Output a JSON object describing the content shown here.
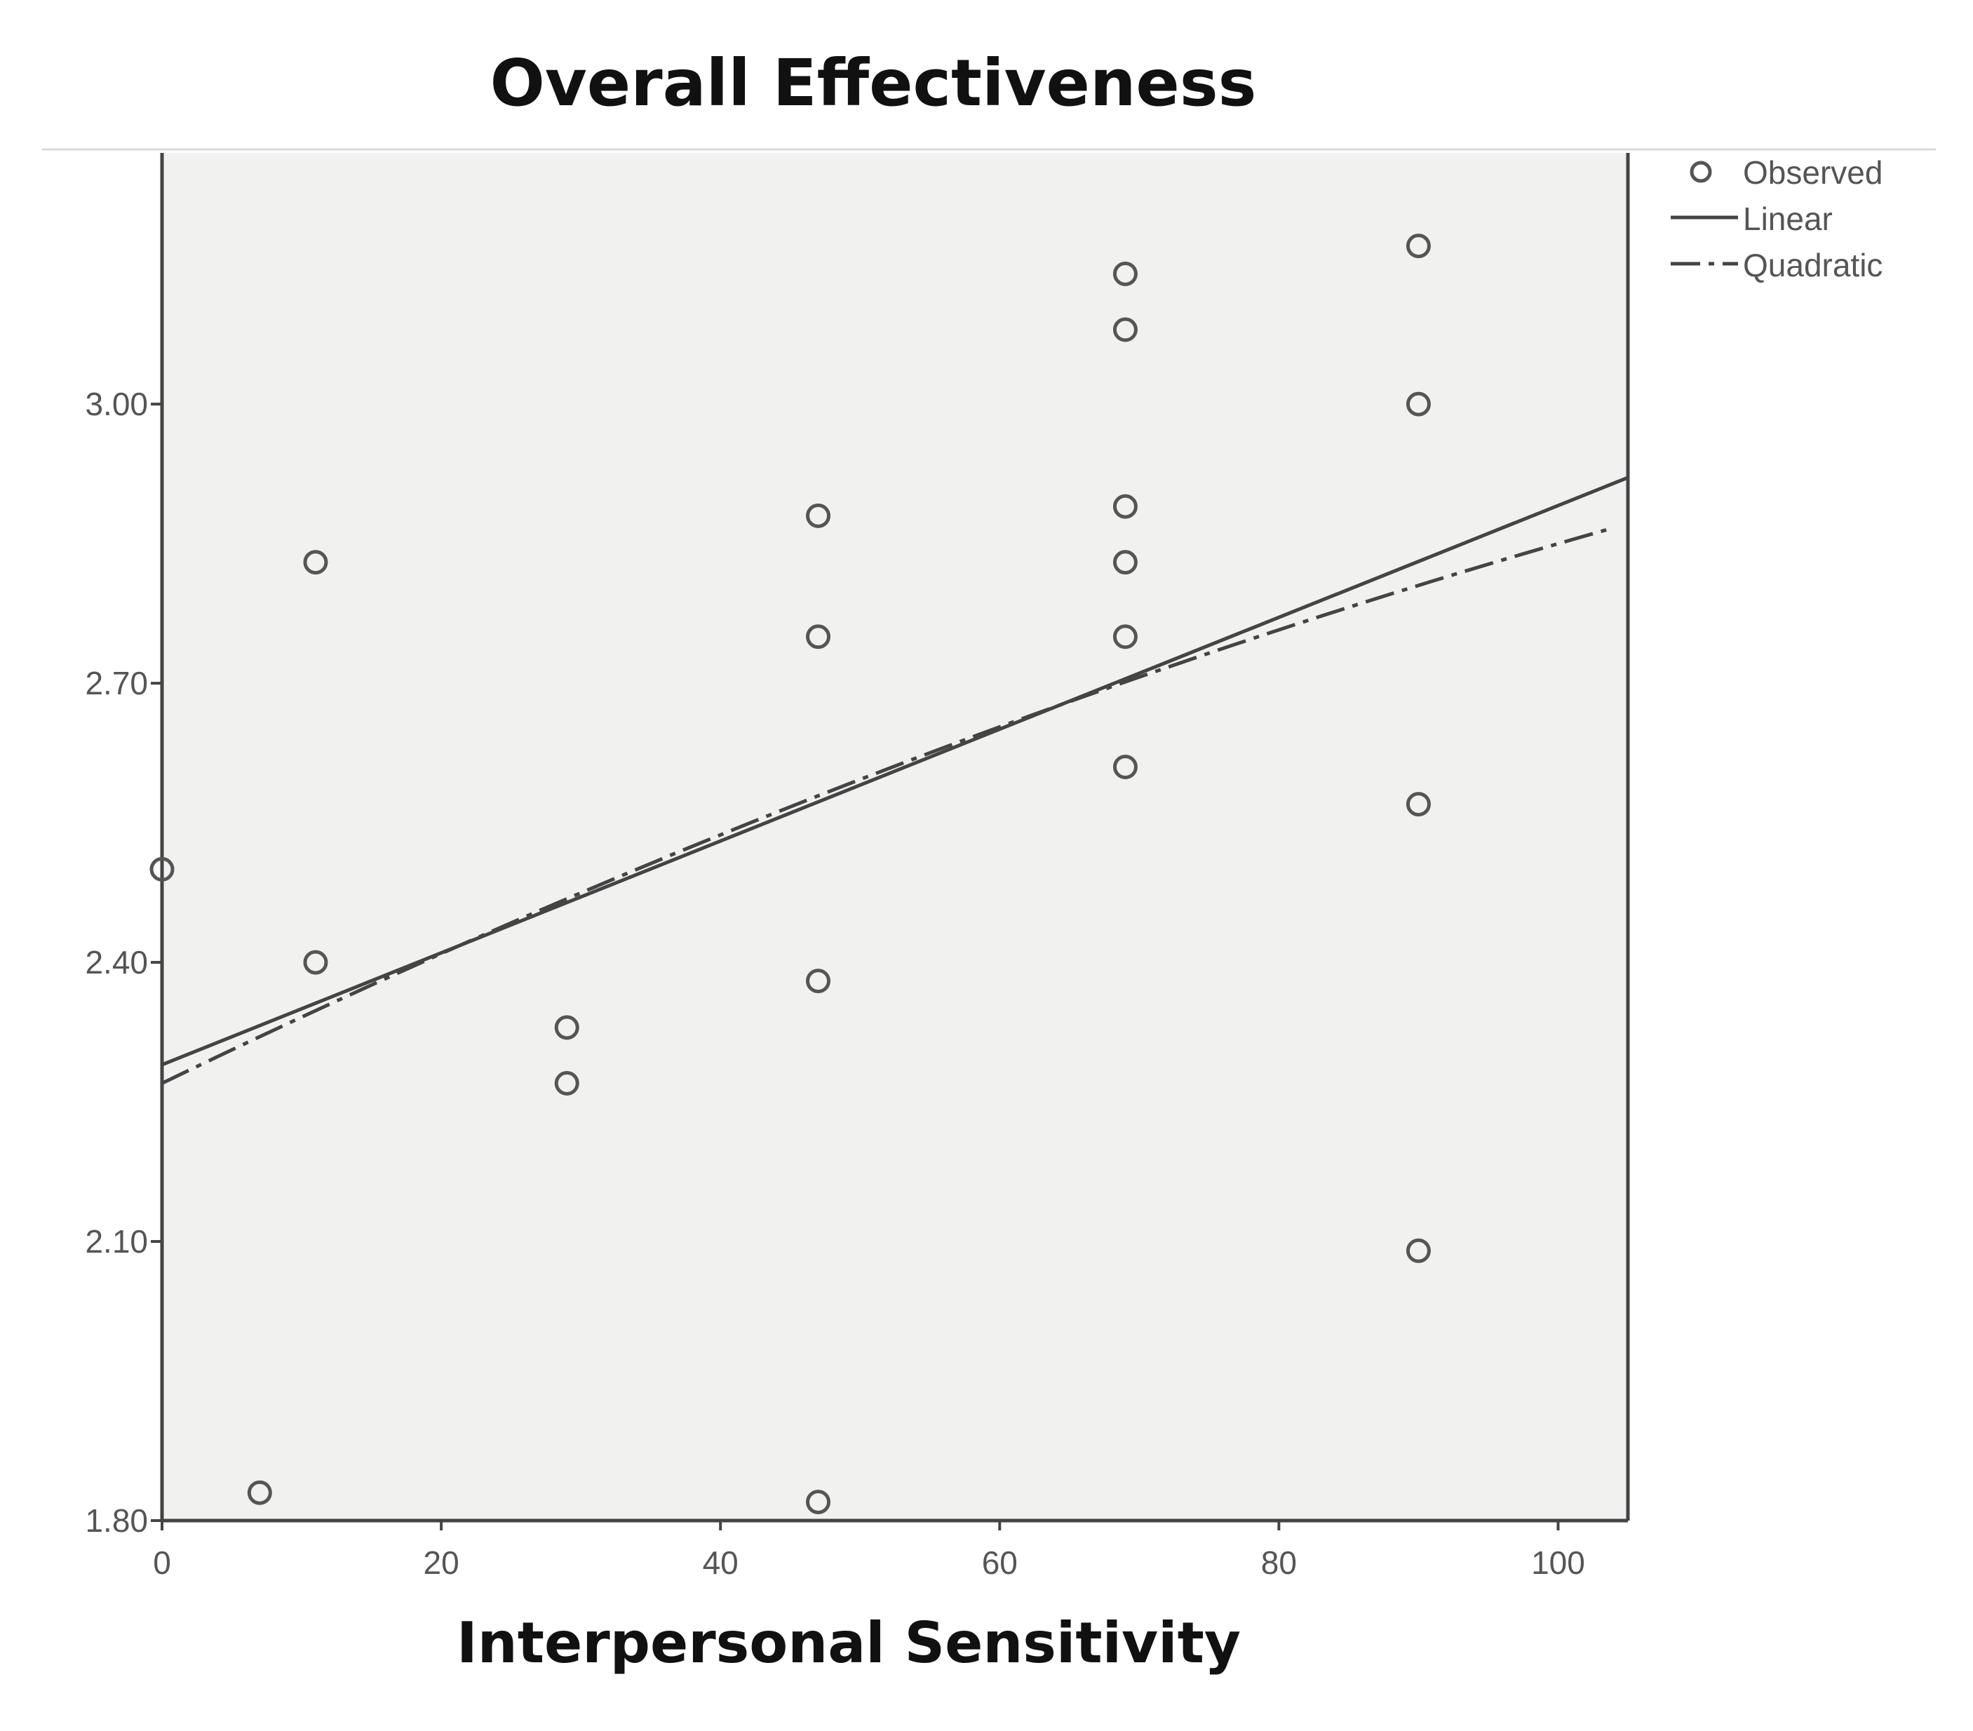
{
  "chart_data": {
    "type": "scatter",
    "title": "Overall Effectiveness",
    "xlabel": "Interpersonal Sensitivity",
    "ylabel": "",
    "xlim": [
      0,
      105
    ],
    "ylim": [
      1.8,
      3.27
    ],
    "x_ticks": [
      0,
      20,
      40,
      60,
      80,
      100
    ],
    "x_tick_labels": [
      "0",
      "20",
      "40",
      "60",
      "80",
      "100"
    ],
    "y_ticks": [
      1.8,
      2.1,
      2.4,
      2.7,
      3.0
    ],
    "y_tick_labels": [
      "1.80",
      "2.10",
      "2.40",
      "2.70",
      "3.00"
    ],
    "grid": false,
    "legend_position": "top-right, outside plot",
    "legend": {
      "observed": "Observed",
      "linear": "Linear",
      "quadratic": "Quadratic"
    },
    "observed": [
      {
        "x": 0,
        "y": 2.5
      },
      {
        "x": 7,
        "y": 1.83
      },
      {
        "x": 11,
        "y": 2.83
      },
      {
        "x": 11,
        "y": 2.4
      },
      {
        "x": 29,
        "y": 2.33
      },
      {
        "x": 29,
        "y": 2.27
      },
      {
        "x": 47,
        "y": 2.88
      },
      {
        "x": 47,
        "y": 2.75
      },
      {
        "x": 47,
        "y": 2.38
      },
      {
        "x": 47,
        "y": 1.82
      },
      {
        "x": 69,
        "y": 3.14
      },
      {
        "x": 69,
        "y": 3.08
      },
      {
        "x": 69,
        "y": 2.89
      },
      {
        "x": 69,
        "y": 2.83
      },
      {
        "x": 69,
        "y": 2.75
      },
      {
        "x": 69,
        "y": 2.61
      },
      {
        "x": 90,
        "y": 3.17
      },
      {
        "x": 90,
        "y": 3.0
      },
      {
        "x": 90,
        "y": 2.57
      },
      {
        "x": 90,
        "y": 2.09
      }
    ],
    "linear_fit": {
      "intercept": 2.29,
      "slope": 0.00601
    },
    "quadratic_fit": {
      "a": 2.27,
      "b": 0.00726,
      "c": -1.46e-05
    },
    "colors": {
      "plot_background": "#f1f1f0",
      "axis": "#444444",
      "line": "#444444",
      "marker": "#555555",
      "tick_text": "#555555",
      "title_text": "#111111"
    }
  }
}
